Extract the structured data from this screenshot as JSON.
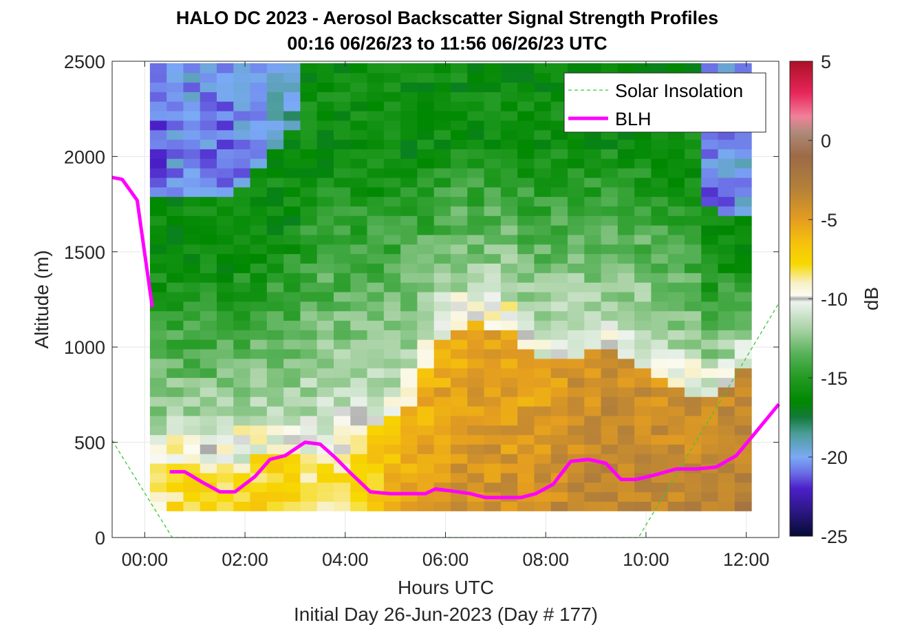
{
  "chart_data": {
    "type": "heatmap",
    "title": "HALO DC 2023 - Aerosol Backscatter Signal Strength Profiles",
    "subtitle": "00:16 06/26/23 to 11:56 06/26/23  UTC",
    "xlabel": "Hours UTC",
    "xlabel2": "Initial Day 26-Jun-2023 (Day # 177)",
    "ylabel": "Altitude (m)",
    "colorbar_label": "dB",
    "xlim": [
      -0.65,
      12.65
    ],
    "ylim": [
      0,
      2500
    ],
    "x_ticks": [
      0,
      2,
      4,
      6,
      8,
      10,
      12
    ],
    "x_tick_labels": [
      "00:00",
      "02:00",
      "04:00",
      "06:00",
      "08:00",
      "10:00",
      "12:00"
    ],
    "y_ticks": [
      0,
      500,
      1000,
      1500,
      2000,
      2500
    ],
    "y_tick_labels": [
      "0",
      "500",
      "1000",
      "1500",
      "2000",
      "2500"
    ],
    "clim": [
      -25,
      5
    ],
    "colorbar_ticks": [
      5,
      0,
      -5,
      -10,
      -15,
      -20,
      -25
    ],
    "colorbar_tick_labels": [
      "5",
      "0",
      "-5",
      "-10",
      "-15",
      "-20",
      "-25"
    ],
    "grid": true,
    "legend_position": "top-right",
    "heatmap": {
      "x_start": 0.27,
      "x_step": 0.3333,
      "y_start": 140,
      "y_step": 50,
      "description_of_rows": "rows from low altitude (140 m) upward to 2500 m, columns from 00:16 to 11:56 UTC; values in dB",
      "key_profiles": {
        "hours": [
          0.27,
          0.8,
          1.5,
          2.2,
          2.9,
          3.3,
          3.8,
          4.3,
          4.8,
          5.3,
          5.8,
          6.3,
          6.8,
          7.3,
          7.8,
          8.3,
          8.8,
          9.3,
          9.8,
          10.3,
          10.8,
          11.3,
          11.93
        ],
        "mixed_layer_top_m": [
          450,
          480,
          480,
          500,
          520,
          540,
          600,
          650,
          700,
          800,
          1100,
          1200,
          1200,
          1150,
          1000,
          1000,
          1050,
          1050,
          1000,
          900,
          850,
          800,
          950
        ],
        "upper_layer_top_m": [
          1800,
          1800,
          1800,
          1900,
          2100,
          2500,
          2500,
          2500,
          2500,
          2500,
          2500,
          2500,
          2500,
          2500,
          2500,
          2500,
          2500,
          2500,
          2500,
          2500,
          2300,
          1700,
          1700
        ],
        "low_layer_db": [
          -8,
          -7,
          -7,
          -7,
          -7,
          -7.5,
          -8,
          -7,
          -6,
          -5,
          -4.5,
          -4,
          -4,
          -4,
          -4,
          -3.5,
          -3,
          -3,
          -3,
          -3,
          -3,
          -2.5,
          -2.5
        ],
        "upper_db": [
          -21,
          -20,
          -21,
          -20,
          -19,
          -19,
          -16,
          -15,
          -14,
          -13,
          -15,
          -16,
          -16,
          -16,
          -16,
          -16,
          -16,
          -17,
          -17,
          -17,
          -16,
          -21,
          -20
        ]
      }
    },
    "series": [
      {
        "name": "Solar Insolation",
        "style": "dashed",
        "color": "#33cc33",
        "x": [
          -0.65,
          0.55,
          9.85,
          12.65
        ],
        "y": [
          510,
          0,
          0,
          1230
        ]
      },
      {
        "name": "BLH",
        "style": "solid",
        "color": "#ff00ff",
        "segments": [
          {
            "x": [
              -0.65,
              -0.45,
              -0.15,
              0.15
            ],
            "y": [
              1890,
              1880,
              1770,
              1210
            ]
          },
          {
            "x": [
              0.5,
              0.8,
              1.15,
              1.5,
              1.8,
              2.2,
              2.5,
              2.8,
              3.2,
              3.5,
              3.8,
              4.1,
              4.5,
              4.9,
              5.3,
              5.6,
              5.8,
              6.1,
              6.5,
              6.8,
              7.1,
              7.5,
              7.8,
              8.15,
              8.5,
              8.85,
              9.2,
              9.5,
              9.8,
              10.2,
              10.6,
              11.0,
              11.4,
              11.8,
              12.15,
              12.65
            ],
            "y": [
              345,
              345,
              290,
              240,
              240,
              320,
              410,
              430,
              500,
              490,
              420,
              340,
              240,
              230,
              230,
              230,
              255,
              245,
              230,
              210,
              210,
              210,
              230,
              280,
              400,
              410,
              390,
              305,
              305,
              330,
              360,
              360,
              370,
              430,
              540,
              700
            ]
          }
        ]
      }
    ],
    "legend": [
      "Solar Insolation",
      "BLH"
    ],
    "colormap_stops": [
      {
        "v": 5,
        "color": "#ac1026"
      },
      {
        "v": 3,
        "color": "#e8265a"
      },
      {
        "v": 1.5,
        "color": "#f0829a"
      },
      {
        "v": 0.5,
        "color": "#ae8a7a"
      },
      {
        "v": -1,
        "color": "#9c6a46"
      },
      {
        "v": -3,
        "color": "#b3803a"
      },
      {
        "v": -5,
        "color": "#e49d20"
      },
      {
        "v": -6.5,
        "color": "#f6c20c"
      },
      {
        "v": -7.8,
        "color": "#f7d800"
      },
      {
        "v": -9,
        "color": "#f8f0c6"
      },
      {
        "v": -9.8,
        "color": "#fbfbf2"
      },
      {
        "v": -10,
        "color": "#aaaaaa"
      },
      {
        "v": -10.2,
        "color": "#eef3ee"
      },
      {
        "v": -12,
        "color": "#a6d1a2"
      },
      {
        "v": -13.5,
        "color": "#57b157"
      },
      {
        "v": -15,
        "color": "#229a22"
      },
      {
        "v": -16.5,
        "color": "#008800"
      },
      {
        "v": -17.5,
        "color": "#137a3a"
      },
      {
        "v": -18.5,
        "color": "#4a9c95"
      },
      {
        "v": -20,
        "color": "#7aaaf5"
      },
      {
        "v": -21,
        "color": "#6b6ee5"
      },
      {
        "v": -22,
        "color": "#4b1fc9"
      },
      {
        "v": -23.5,
        "color": "#2a1780"
      },
      {
        "v": -25,
        "color": "#050a35"
      }
    ]
  }
}
